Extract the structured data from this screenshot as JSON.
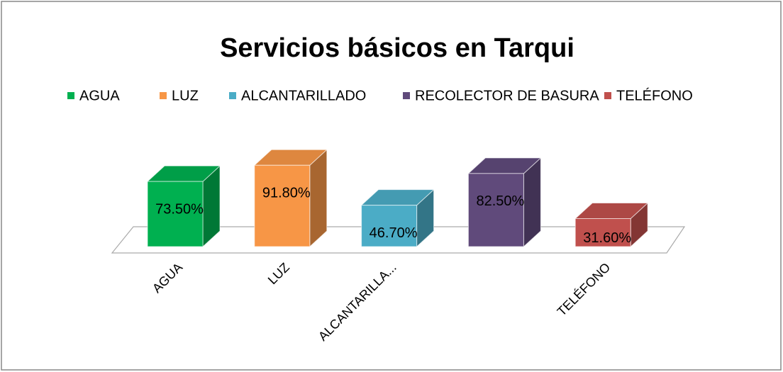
{
  "chart_data": {
    "type": "bar3d",
    "title": "Servicios básicos  en Tarqui",
    "categories": [
      "AGUA",
      "LUZ",
      "ALCANTARILLA...",
      null,
      "TELÉFONO"
    ],
    "legend": [
      "AGUA",
      "LUZ",
      "ALCANTARILLADO",
      "RECOLECTOR DE BASURA",
      "TELÉFONO"
    ],
    "values": [
      73.5,
      91.8,
      46.7,
      82.5,
      31.6
    ],
    "value_labels": [
      "73.50%",
      "91.80%",
      "46.70%",
      "82.50%",
      "31.60%"
    ],
    "colors": [
      "#00b050",
      "#f79646",
      "#4bacc6",
      "#604a7b",
      "#c0504d"
    ]
  }
}
